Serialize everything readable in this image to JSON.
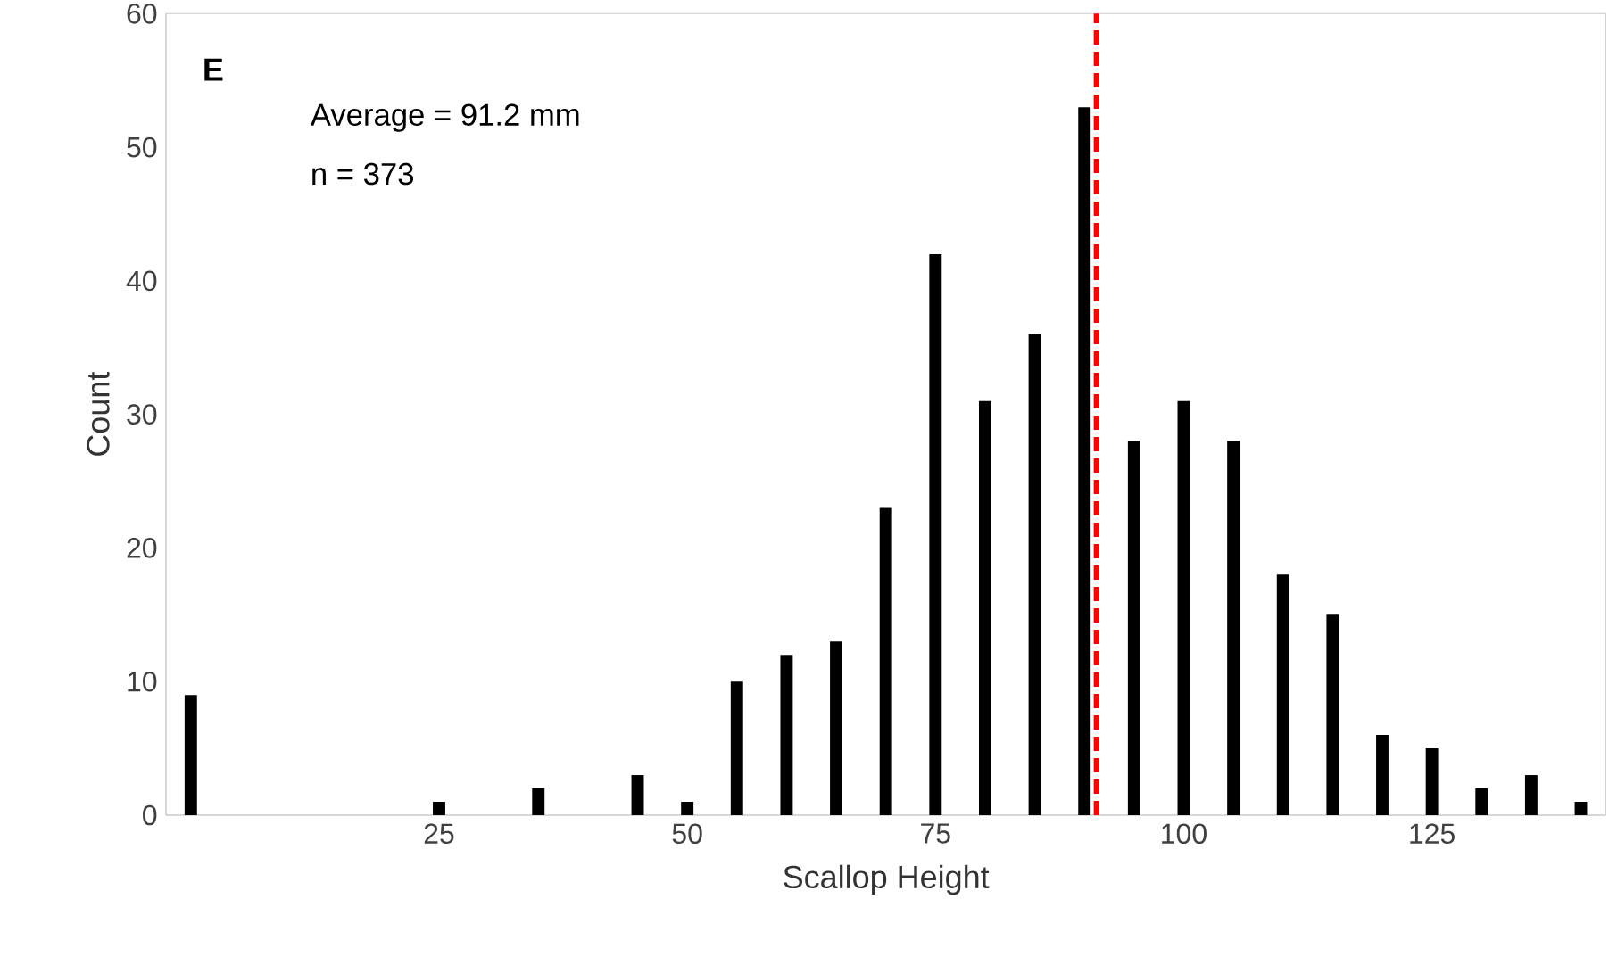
{
  "chart_data": {
    "type": "bar",
    "x": [
      0,
      5,
      10,
      15,
      20,
      25,
      30,
      35,
      40,
      45,
      50,
      55,
      60,
      65,
      70,
      75,
      80,
      85,
      90,
      95,
      100,
      105,
      110,
      115,
      120,
      125,
      130,
      135,
      140
    ],
    "values": [
      9,
      0,
      0,
      0,
      0,
      1,
      0,
      2,
      0,
      3,
      1,
      10,
      12,
      13,
      23,
      42,
      31,
      36,
      53,
      28,
      31,
      28,
      18,
      15,
      6,
      5,
      2,
      3,
      1
    ],
    "color": "#000000",
    "xlabel": "Scallop Height",
    "ylabel": "Count",
    "xlim": [
      -2.5,
      142.5
    ],
    "xticks": [
      25,
      50,
      75,
      100,
      125
    ],
    "ylim": [
      0,
      60
    ],
    "yticks": [
      0,
      10,
      20,
      30,
      40,
      50,
      60
    ],
    "grid": false,
    "ref_lines": [
      {
        "axis": "x",
        "value": 91.2,
        "color": "#ff0000",
        "line_style": "dashed"
      }
    ],
    "annotations": [
      "E",
      "Average = 91.2 mm",
      "n = 373"
    ]
  }
}
